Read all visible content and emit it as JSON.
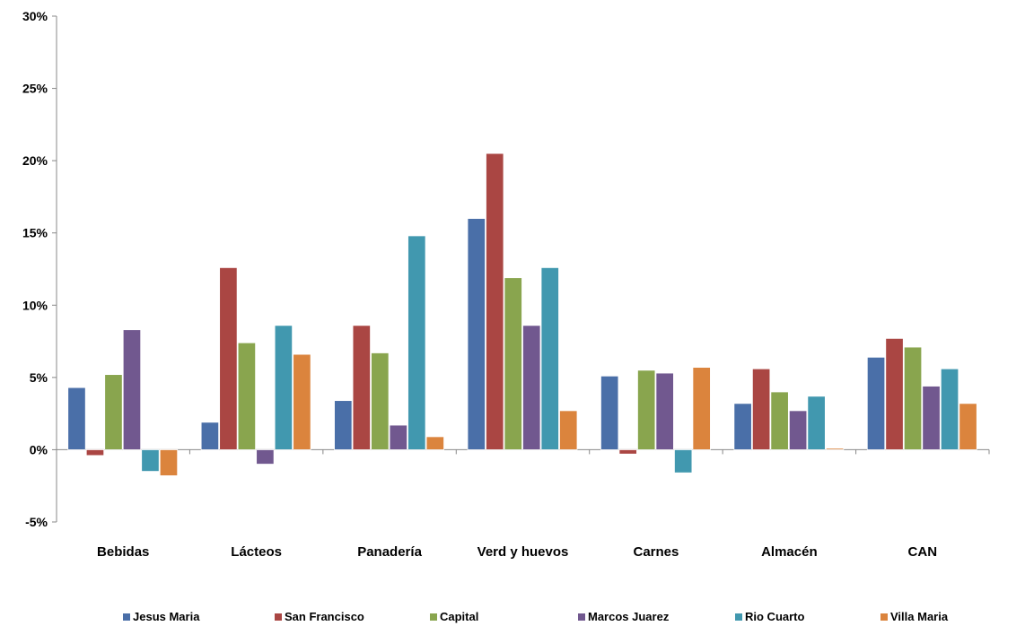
{
  "chart_data": {
    "type": "bar",
    "title": "",
    "xlabel": "",
    "ylabel": "",
    "categories": [
      "Bebidas",
      "Lácteos",
      "Panadería",
      "Verd y huevos",
      "Carnes",
      "Almacén",
      "CAN"
    ],
    "ylim": [
      -5,
      30
    ],
    "yticks": [
      -5,
      0,
      5,
      10,
      15,
      20,
      25,
      30
    ],
    "ytick_labels": [
      "-5%",
      "0%",
      "5%",
      "10%",
      "15%",
      "20%",
      "25%",
      "30%"
    ],
    "grid": false,
    "legend_position": "bottom",
    "series": [
      {
        "name": "Jesus Maria",
        "color": "#4a6fa8",
        "values": [
          4.3,
          1.9,
          3.4,
          16.0,
          5.1,
          3.2,
          6.4
        ]
      },
      {
        "name": "San Francisco",
        "color": "#aa4643",
        "values": [
          -0.4,
          12.6,
          8.6,
          20.5,
          -0.3,
          5.6,
          7.7
        ]
      },
      {
        "name": "Capital",
        "color": "#89a54e",
        "values": [
          5.2,
          7.4,
          6.7,
          11.9,
          5.5,
          4.0,
          7.1
        ]
      },
      {
        "name": "Marcos Juarez",
        "color": "#71588f",
        "values": [
          8.3,
          -1.0,
          1.7,
          8.6,
          5.3,
          2.7,
          4.4
        ]
      },
      {
        "name": "Rio Cuarto",
        "color": "#4198af",
        "values": [
          -1.5,
          8.6,
          14.8,
          12.6,
          -1.6,
          3.7,
          5.6
        ]
      },
      {
        "name": "Villa Maria",
        "color": "#db843d",
        "values": [
          -1.8,
          6.6,
          0.9,
          2.7,
          5.7,
          0.1,
          3.2
        ]
      }
    ]
  }
}
